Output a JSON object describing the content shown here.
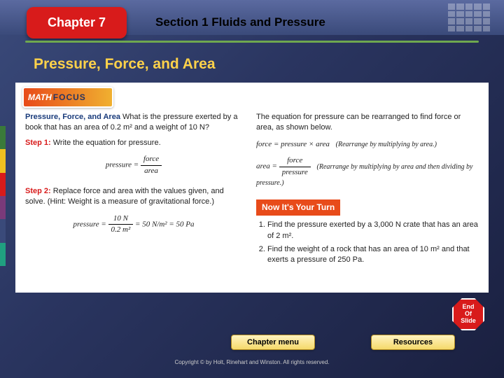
{
  "chapter_label": "Chapter 7",
  "section_label": "Section 1  Fluids and Pressure",
  "content_title": "Pressure, Force, and Area",
  "mathfocus": {
    "math": "MATH",
    "focus": "FOCUS"
  },
  "left": {
    "heading": "Pressure, Force, and Area",
    "intro": "What is the pressure exerted by a book that has an area of 0.2 m² and a weight of 10 N?",
    "step1_label": "Step 1:",
    "step1_text": "Write the equation for pressure.",
    "eq1_lhs": "pressure =",
    "eq1_num": "force",
    "eq1_den": "area",
    "step2_label": "Step 2:",
    "step2_text": "Replace force and area with the values given, and solve. (Hint: Weight is a measure of gravitational force.)",
    "eq2_lhs": "pressure =",
    "eq2_num": "10 N",
    "eq2_den": "0.2 m²",
    "eq2_result": "= 50 N/m² = 50 Pa"
  },
  "right": {
    "intro": "The equation for pressure can be rearranged to find force or area, as shown below.",
    "eqA": "force = pressure × area",
    "eqA_paren": "(Rearrange by multiplying by area.)",
    "eqB_lhs": "area =",
    "eqB_num": "force",
    "eqB_den": "pressure",
    "eqB_paren": "(Rearrange by multiplying by area and then dividing by pressure.)",
    "turn_label": "Now It's Your Turn",
    "q1": "Find the pressure exerted by a 3,000 N crate that has an area of 2 m².",
    "q2": "Find the weight of a rock that has an area of 10 m² and that exerts a pressure of 250 Pa."
  },
  "buttons": {
    "menu": "Chapter menu",
    "resources": "Resources"
  },
  "end_slide": {
    "l1": "End",
    "l2": "Of",
    "l3": "Slide"
  },
  "copyright": "Copyright © by Holt, Rinehart and Winston. All rights reserved.",
  "strip_colors": [
    "#3a7a3a",
    "#f0c020",
    "#d81b1b",
    "#7a3a7a",
    "#3a4a7a",
    "#20a080"
  ]
}
